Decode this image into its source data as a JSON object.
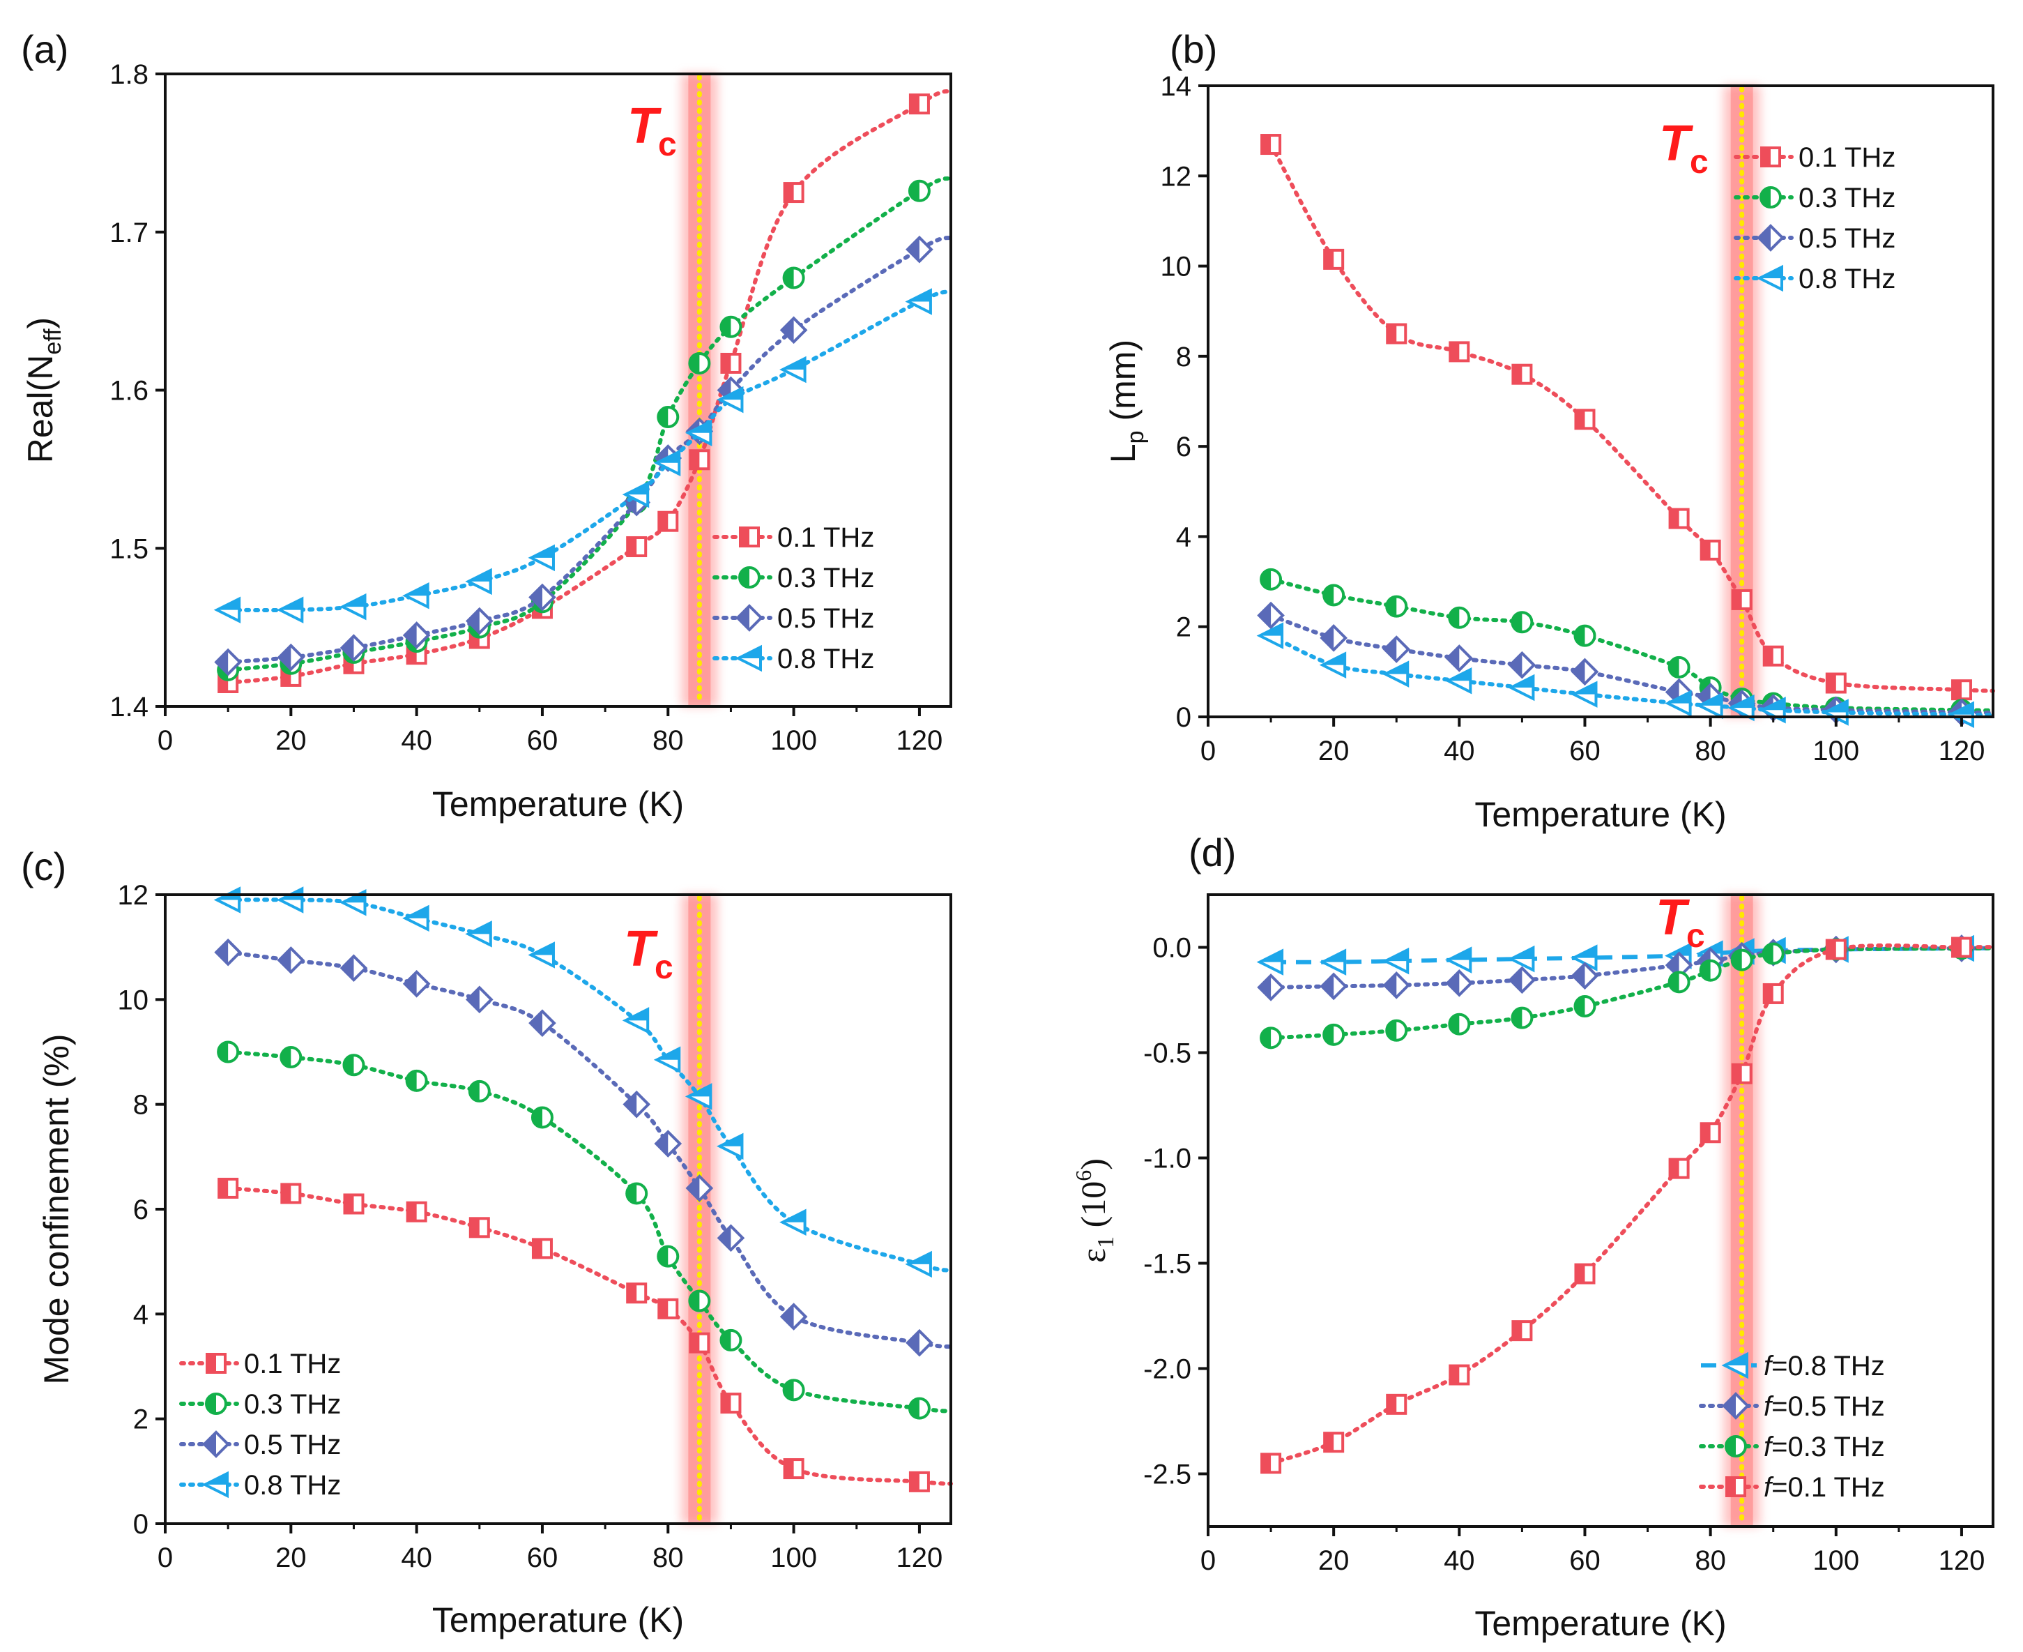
{
  "figure": {
    "tc_label": {
      "main": "T",
      "sub": "c"
    },
    "tc_temperature": 85,
    "colors": {
      "0.1 THz": "#ee4d5a",
      "0.3 THz": "#12b04a",
      "0.5 THz": "#5a6ab8",
      "0.8 THz": "#1da7ea",
      "tc_band": "#ff8f8f",
      "tc_line": "#ffe800"
    }
  },
  "chart_data": [
    {
      "panel": "(a)",
      "type": "line",
      "xlabel": "Temperature (K)",
      "ylabel": {
        "main": "Real(N",
        "sub": "eff",
        "end": ")"
      },
      "xlim": [
        0,
        125
      ],
      "ylim": [
        1.4,
        1.8
      ],
      "xticks": [
        "0",
        "20",
        "40",
        "60",
        "80",
        "100",
        "120"
      ],
      "yticks": [
        "1.4",
        "1.5",
        "1.6",
        "1.7",
        "1.8"
      ],
      "legend_position": "bottom-right",
      "series": [
        {
          "name": "0.1 THz",
          "label": "0.1 THz",
          "marker": "square",
          "x": [
            10,
            20,
            30,
            40,
            50,
            60,
            75,
            80,
            85,
            90,
            100,
            120
          ],
          "y": [
            1.415,
            1.419,
            1.427,
            1.433,
            1.443,
            1.462,
            1.501,
            1.517,
            1.556,
            1.617,
            1.725,
            1.781
          ]
        },
        {
          "name": "0.3 THz",
          "label": "0.3 THz",
          "marker": "circle",
          "x": [
            10,
            20,
            30,
            40,
            50,
            60,
            75,
            80,
            85,
            90,
            100,
            120
          ],
          "y": [
            1.423,
            1.427,
            1.434,
            1.441,
            1.45,
            1.466,
            1.529,
            1.583,
            1.617,
            1.64,
            1.671,
            1.726
          ]
        },
        {
          "name": "0.5 THz",
          "label": "0.5 THz",
          "marker": "diamond",
          "x": [
            10,
            20,
            30,
            40,
            50,
            60,
            75,
            80,
            85,
            90,
            100,
            120
          ],
          "y": [
            1.428,
            1.431,
            1.437,
            1.445,
            1.454,
            1.469,
            1.529,
            1.557,
            1.574,
            1.6,
            1.638,
            1.689
          ]
        },
        {
          "name": "0.8 THz",
          "label": "0.8 THz",
          "marker": "triangle-left",
          "x": [
            10,
            20,
            30,
            40,
            50,
            60,
            75,
            80,
            85,
            90,
            100,
            120
          ],
          "y": [
            1.461,
            1.461,
            1.463,
            1.47,
            1.479,
            1.494,
            1.534,
            1.554,
            1.573,
            1.594,
            1.613,
            1.656
          ]
        }
      ]
    },
    {
      "panel": "(b)",
      "type": "line",
      "xlabel": "Temperature (K)",
      "ylabel": {
        "main": "L",
        "sub": "p",
        "end": " (mm)"
      },
      "xlim": [
        0,
        125
      ],
      "ylim": [
        0,
        14
      ],
      "xticks": [
        "0",
        "20",
        "40",
        "60",
        "80",
        "100",
        "120"
      ],
      "yticks": [
        "0",
        "2",
        "4",
        "6",
        "8",
        "10",
        "12",
        "14"
      ],
      "legend_position": "top-right",
      "series": [
        {
          "name": "0.1 THz",
          "label": "0.1 THz",
          "marker": "square",
          "x": [
            10,
            20,
            30,
            40,
            50,
            60,
            75,
            80,
            85,
            90,
            100,
            120
          ],
          "y": [
            12.7,
            10.15,
            8.5,
            8.1,
            7.6,
            6.6,
            4.4,
            3.7,
            2.6,
            1.35,
            0.75,
            0.6
          ]
        },
        {
          "name": "0.3 THz",
          "label": "0.3 THz",
          "marker": "circle",
          "x": [
            10,
            20,
            30,
            40,
            50,
            60,
            75,
            80,
            85,
            90,
            100,
            120
          ],
          "y": [
            3.05,
            2.7,
            2.45,
            2.2,
            2.1,
            1.8,
            1.1,
            0.65,
            0.4,
            0.3,
            0.2,
            0.15
          ]
        },
        {
          "name": "0.5 THz",
          "label": "0.5 THz",
          "marker": "diamond",
          "x": [
            10,
            20,
            30,
            40,
            50,
            60,
            75,
            80,
            85,
            90,
            100,
            120
          ],
          "y": [
            2.25,
            1.75,
            1.5,
            1.3,
            1.15,
            1.0,
            0.55,
            0.45,
            0.3,
            0.2,
            0.15,
            0.1
          ]
        },
        {
          "name": "0.8 THz",
          "label": "0.8 THz",
          "marker": "triangle-left",
          "x": [
            10,
            20,
            30,
            40,
            50,
            60,
            75,
            80,
            85,
            90,
            100,
            120
          ],
          "y": [
            1.8,
            1.15,
            0.95,
            0.8,
            0.65,
            0.5,
            0.3,
            0.25,
            0.2,
            0.15,
            0.1,
            0.05
          ]
        }
      ]
    },
    {
      "panel": "(c)",
      "type": "line",
      "xlabel": "Temperature (K)",
      "ylabel": {
        "main": "Mode confinement (%)",
        "sub": "",
        "end": ""
      },
      "xlim": [
        0,
        125
      ],
      "ylim": [
        0,
        12
      ],
      "xticks": [
        "0",
        "20",
        "40",
        "60",
        "80",
        "100",
        "120"
      ],
      "yticks": [
        "0",
        "2",
        "4",
        "6",
        "8",
        "10",
        "12"
      ],
      "legend_position": "bottom-left",
      "series": [
        {
          "name": "0.1 THz",
          "label": "0.1 THz",
          "marker": "square",
          "x": [
            10,
            20,
            30,
            40,
            50,
            60,
            75,
            80,
            85,
            90,
            100,
            120
          ],
          "y": [
            6.4,
            6.3,
            6.1,
            5.95,
            5.65,
            5.25,
            4.4,
            4.1,
            3.45,
            2.3,
            1.05,
            0.8
          ]
        },
        {
          "name": "0.3 THz",
          "label": "0.3 THz",
          "marker": "circle",
          "x": [
            10,
            20,
            30,
            40,
            50,
            60,
            75,
            80,
            85,
            90,
            100,
            120
          ],
          "y": [
            9.0,
            8.9,
            8.75,
            8.45,
            8.25,
            7.75,
            6.3,
            5.1,
            4.25,
            3.5,
            2.55,
            2.2
          ]
        },
        {
          "name": "0.5 THz",
          "label": "0.5 THz",
          "marker": "diamond",
          "x": [
            10,
            20,
            30,
            40,
            50,
            60,
            75,
            80,
            85,
            90,
            100,
            120
          ],
          "y": [
            10.9,
            10.75,
            10.6,
            10.3,
            10.0,
            9.55,
            8.0,
            7.25,
            6.4,
            5.45,
            3.95,
            3.45
          ]
        },
        {
          "name": "0.8 THz",
          "label": "0.8 THz",
          "marker": "triangle-left",
          "x": [
            10,
            20,
            30,
            40,
            50,
            60,
            75,
            80,
            85,
            90,
            100,
            120
          ],
          "y": [
            11.9,
            11.9,
            11.85,
            11.55,
            11.25,
            10.85,
            9.6,
            8.85,
            8.15,
            7.2,
            5.75,
            4.95
          ]
        }
      ]
    },
    {
      "panel": "(d)",
      "type": "line",
      "xlabel": "Temperature (K)",
      "ylabel": {
        "main": "ε",
        "sub": "1",
        "end": " (10",
        "sup": "6",
        "close": ")"
      },
      "xlim": [
        0,
        125
      ],
      "ylim": [
        -2.75,
        0.25
      ],
      "xticks": [
        "0",
        "20",
        "40",
        "60",
        "80",
        "100",
        "120"
      ],
      "yticks": [
        "-2.5",
        "-2.0",
        "-1.5",
        "-1.0",
        "-0.5",
        "0.0"
      ],
      "legend_position": "bottom-right",
      "series": [
        {
          "name": "0.8 THz",
          "label": "=0.8 THz",
          "prefix": "f",
          "marker": "triangle-left",
          "dashed": true,
          "x": [
            10,
            20,
            30,
            40,
            50,
            60,
            75,
            80,
            85,
            90,
            100,
            120
          ],
          "y": [
            -0.07,
            -0.07,
            -0.065,
            -0.06,
            -0.055,
            -0.05,
            -0.04,
            -0.03,
            -0.02,
            -0.015,
            -0.01,
            -0.005
          ]
        },
        {
          "name": "0.5 THz",
          "label": "=0.5 THz",
          "prefix": "f",
          "marker": "diamond",
          "x": [
            10,
            20,
            30,
            40,
            50,
            60,
            75,
            80,
            85,
            90,
            100,
            120
          ],
          "y": [
            -0.19,
            -0.185,
            -0.18,
            -0.17,
            -0.155,
            -0.135,
            -0.085,
            -0.065,
            -0.04,
            -0.025,
            -0.01,
            -0.005
          ]
        },
        {
          "name": "0.3 THz",
          "label": "=0.3 THz",
          "prefix": "f",
          "marker": "circle",
          "x": [
            10,
            20,
            30,
            40,
            50,
            60,
            75,
            80,
            85,
            90,
            100,
            120
          ],
          "y": [
            -0.43,
            -0.415,
            -0.395,
            -0.365,
            -0.335,
            -0.28,
            -0.165,
            -0.11,
            -0.06,
            -0.03,
            -0.01,
            -0.005
          ]
        },
        {
          "name": "0.1 THz",
          "label": "=0.1 THz",
          "prefix": "f",
          "marker": "square",
          "x": [
            10,
            20,
            30,
            40,
            50,
            60,
            75,
            80,
            85,
            90,
            100,
            120
          ],
          "y": [
            -2.45,
            -2.35,
            -2.17,
            -2.03,
            -1.82,
            -1.55,
            -1.05,
            -0.88,
            -0.6,
            -0.22,
            -0.01,
            0.0
          ]
        }
      ]
    }
  ]
}
